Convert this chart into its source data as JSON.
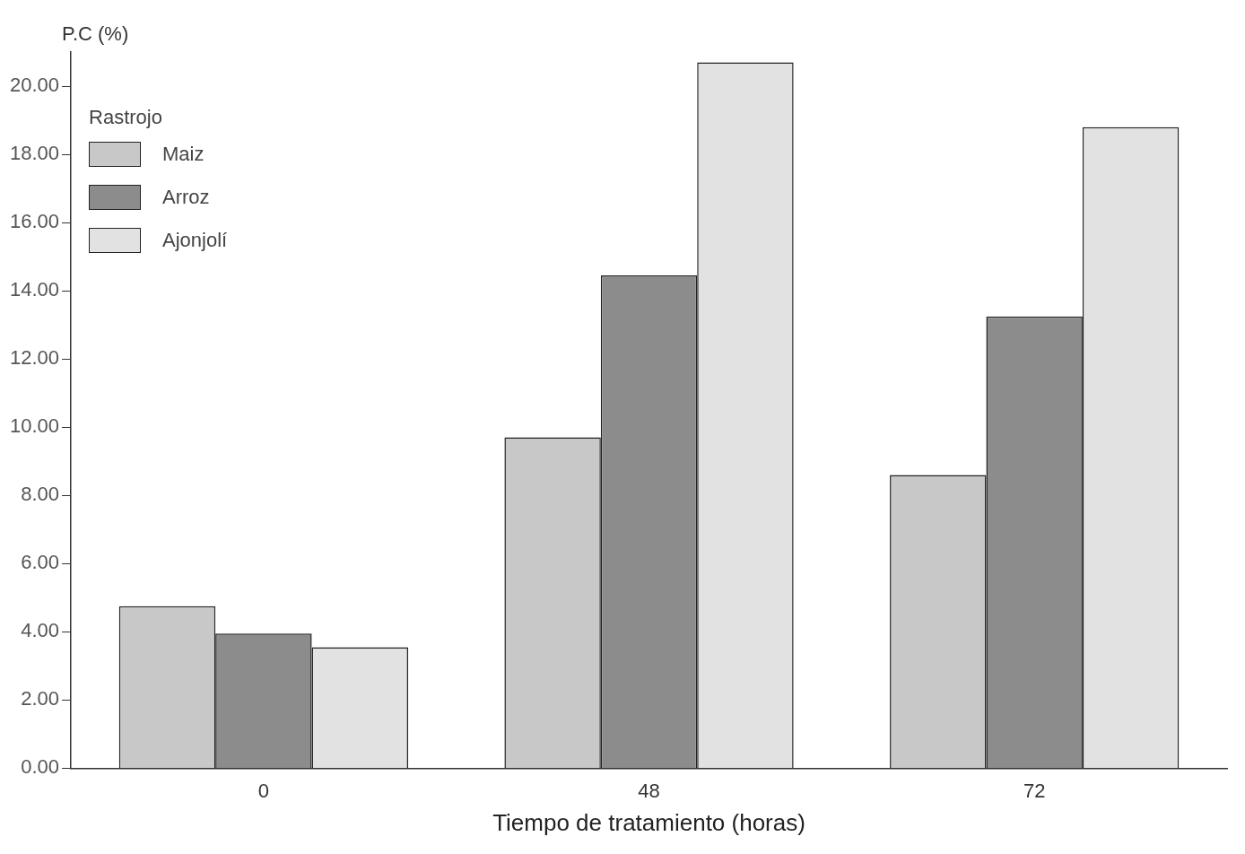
{
  "chart_data": {
    "type": "bar",
    "xlabel": "Tiempo de tratamiento (horas)",
    "ylabel": "P.C (%)",
    "legend_title": "Rastrojo",
    "legend": "top left",
    "grid": false,
    "categories": [
      "0",
      "48",
      "72"
    ],
    "ylim": [
      0,
      21
    ],
    "yticks": [
      {
        "value": 0,
        "label": "0.00"
      },
      {
        "value": 2,
        "label": "2.00"
      },
      {
        "value": 4,
        "label": "4.00"
      },
      {
        "value": 6,
        "label": "6.00"
      },
      {
        "value": 8,
        "label": "8.00"
      },
      {
        "value": 10,
        "label": "10.00"
      },
      {
        "value": 12,
        "label": "12.00"
      },
      {
        "value": 14,
        "label": "14.00"
      },
      {
        "value": 16,
        "label": "16.00"
      },
      {
        "value": 18,
        "label": "18.00"
      },
      {
        "value": 20,
        "label": "20.00"
      }
    ],
    "series": [
      {
        "name": "Maiz",
        "color": "#c8c8c8",
        "values": [
          4.75,
          9.7,
          8.6
        ]
      },
      {
        "name": "Arroz",
        "color": "#8c8c8c",
        "values": [
          3.95,
          14.45,
          13.25
        ]
      },
      {
        "name": "Ajonjolí",
        "color": "#e2e2e2",
        "values": [
          3.55,
          20.7,
          18.8
        ]
      }
    ]
  }
}
